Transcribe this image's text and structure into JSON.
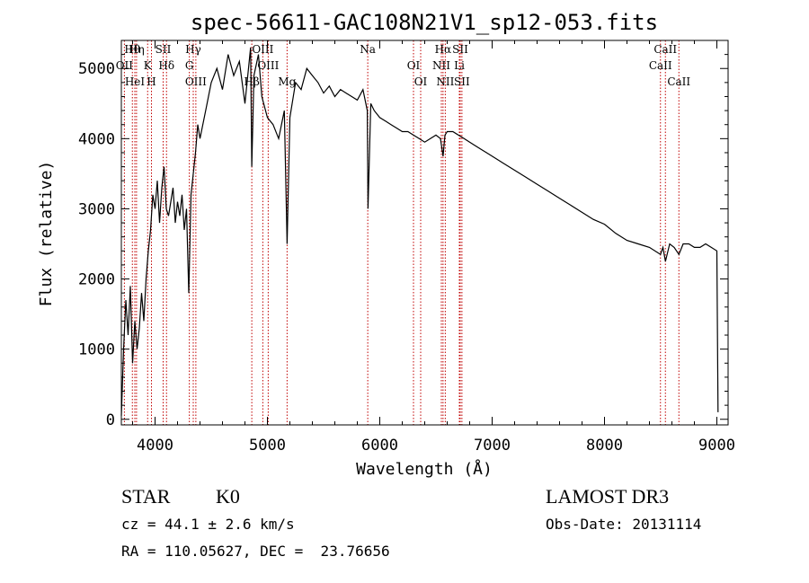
{
  "chart_data": {
    "type": "line",
    "title": "spec-56611-GAC108N21V1_sp12-053.fits",
    "xlabel": "Wavelength (Å)",
    "ylabel": "Flux (relative)",
    "xlim": [
      3700,
      9100
    ],
    "ylim": [
      -80,
      5400
    ],
    "xticks": [
      4000,
      5000,
      6000,
      7000,
      8000,
      9000
    ],
    "yticks": [
      0,
      1000,
      2000,
      3000,
      4000,
      5000
    ],
    "series": [
      {
        "name": "spectrum",
        "x": [
          3700,
          3720,
          3740,
          3760,
          3780,
          3800,
          3820,
          3840,
          3860,
          3880,
          3900,
          3920,
          3940,
          3960,
          3980,
          4000,
          4020,
          4040,
          4060,
          4080,
          4100,
          4120,
          4140,
          4160,
          4180,
          4200,
          4220,
          4240,
          4260,
          4280,
          4300,
          4320,
          4340,
          4360,
          4380,
          4400,
          4450,
          4500,
          4550,
          4600,
          4650,
          4700,
          4750,
          4800,
          4850,
          4861,
          4880,
          4920,
          4950,
          5000,
          5050,
          5100,
          5150,
          5175,
          5200,
          5250,
          5300,
          5350,
          5400,
          5450,
          5500,
          5550,
          5600,
          5650,
          5700,
          5750,
          5800,
          5850,
          5889,
          5895,
          5920,
          5950,
          6000,
          6050,
          6100,
          6150,
          6200,
          6250,
          6300,
          6350,
          6400,
          6450,
          6500,
          6540,
          6563,
          6580,
          6600,
          6650,
          6700,
          6750,
          6800,
          6850,
          6900,
          6950,
          7000,
          7100,
          7200,
          7300,
          7400,
          7500,
          7600,
          7700,
          7800,
          7900,
          8000,
          8100,
          8200,
          8300,
          8400,
          8498,
          8520,
          8542,
          8580,
          8620,
          8662,
          8700,
          8750,
          8800,
          8850,
          8900,
          8950,
          9000,
          9010
        ],
        "values": [
          50,
          1000,
          1700,
          1200,
          1900,
          800,
          1400,
          1000,
          1300,
          1800,
          1400,
          2000,
          2400,
          2700,
          3200,
          3000,
          3400,
          2800,
          3300,
          3600,
          3000,
          2900,
          3100,
          3300,
          2800,
          3100,
          2900,
          3200,
          2700,
          3000,
          1800,
          3200,
          3500,
          3800,
          4200,
          4000,
          4400,
          4800,
          5000,
          4700,
          5200,
          4900,
          5100,
          4500,
          5300,
          3600,
          4900,
          5200,
          4600,
          4300,
          4200,
          4000,
          4400,
          2500,
          4300,
          4800,
          4700,
          5000,
          4900,
          4800,
          4650,
          4750,
          4600,
          4700,
          4650,
          4600,
          4550,
          4700,
          4400,
          3000,
          4500,
          4400,
          4300,
          4250,
          4200,
          4150,
          4100,
          4100,
          4050,
          4000,
          3950,
          4000,
          4050,
          4000,
          3750,
          4050,
          4100,
          4100,
          4050,
          4000,
          3950,
          3900,
          3850,
          3800,
          3750,
          3650,
          3550,
          3450,
          3350,
          3250,
          3150,
          3050,
          2950,
          2850,
          2780,
          2650,
          2550,
          2500,
          2450,
          2350,
          2450,
          2250,
          2500,
          2450,
          2350,
          2500,
          2500,
          2450,
          2450,
          2500,
          2450,
          2400,
          100
        ]
      }
    ],
    "lines": [
      {
        "label": "Hθ",
        "wl": 3798
      },
      {
        "label": "OII",
        "wl": 3727
      },
      {
        "label": "HeI",
        "wl": 3820
      },
      {
        "label": "Hη",
        "wl": 3835
      },
      {
        "label": "K",
        "wl": 3934
      },
      {
        "label": "H",
        "wl": 3968
      },
      {
        "label": "SII",
        "wl": 4072
      },
      {
        "label": "Hδ",
        "wl": 4102
      },
      {
        "label": "OIII",
        "wl": 4363
      },
      {
        "label": "Hγ",
        "wl": 4340
      },
      {
        "label": "G",
        "wl": 4305
      },
      {
        "label": "Hβ",
        "wl": 4861
      },
      {
        "label": "OIII",
        "wl": 4959
      },
      {
        "label": "OIII",
        "wl": 5007
      },
      {
        "label": "Mg",
        "wl": 5175
      },
      {
        "label": "Na",
        "wl": 5893
      },
      {
        "label": "OI",
        "wl": 6300
      },
      {
        "label": "OI",
        "wl": 6364
      },
      {
        "label": "Hα",
        "wl": 6563
      },
      {
        "label": "NII",
        "wl": 6548
      },
      {
        "label": "NII",
        "wl": 6583
      },
      {
        "label": "SII",
        "wl": 6716
      },
      {
        "label": "Li",
        "wl": 6708
      },
      {
        "label": "SII",
        "wl": 6731
      },
      {
        "label": "CaII",
        "wl": 8542
      },
      {
        "label": "CaII",
        "wl": 8498
      },
      {
        "label": "CaII",
        "wl": 8662
      }
    ]
  },
  "info": {
    "object_type": "STAR",
    "subclass": "K0",
    "survey": "LAMOST DR3",
    "cz": "cz = 44.1 ± 2.6 km/s",
    "obs_date": "Obs-Date: 20131114",
    "coords": "RA = 110.05627, DEC =  23.76656"
  }
}
